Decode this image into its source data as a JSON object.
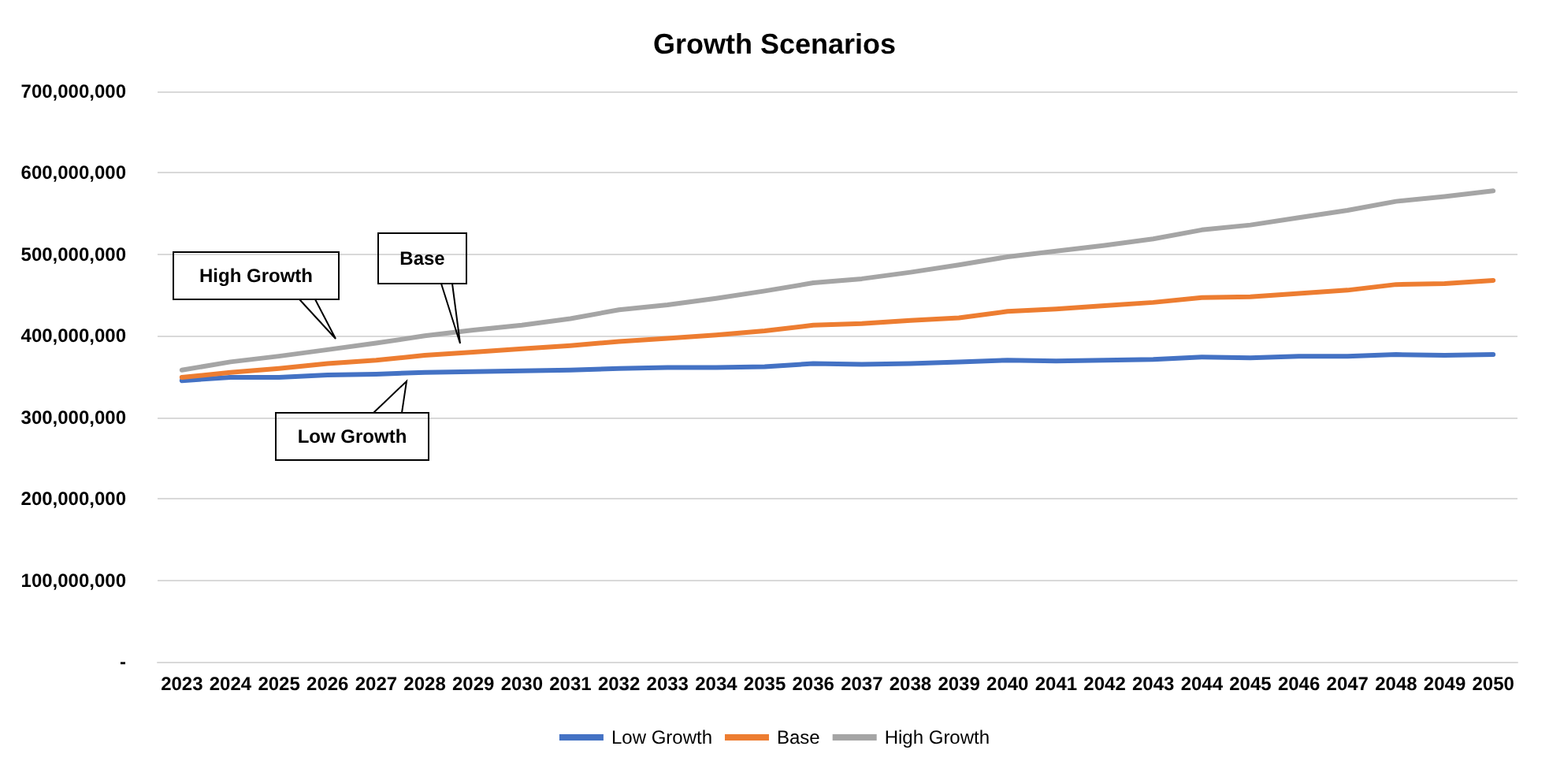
{
  "chart_data": {
    "type": "line",
    "title": "Growth Scenarios",
    "categories": [
      "2023",
      "2024",
      "2025",
      "2026",
      "2027",
      "2028",
      "2029",
      "2030",
      "2031",
      "2032",
      "2033",
      "2034",
      "2035",
      "2036",
      "2037",
      "2038",
      "2039",
      "2040",
      "2041",
      "2042",
      "2043",
      "2044",
      "2045",
      "2046",
      "2047",
      "2048",
      "2049",
      "2050"
    ],
    "series": [
      {
        "name": "Low Growth",
        "color": "#4472c4",
        "values": [
          345000000,
          349000000,
          349000000,
          352000000,
          353000000,
          355000000,
          356000000,
          357000000,
          358000000,
          360000000,
          361000000,
          361000000,
          362000000,
          366000000,
          365000000,
          366000000,
          368000000,
          370000000,
          369000000,
          370000000,
          371000000,
          374000000,
          373000000,
          375000000,
          375000000,
          377000000,
          376000000,
          377000000
        ]
      },
      {
        "name": "Base",
        "color": "#ed7d31",
        "values": [
          349000000,
          355000000,
          360000000,
          366000000,
          370000000,
          376000000,
          380000000,
          384000000,
          388000000,
          393000000,
          397000000,
          401000000,
          406000000,
          413000000,
          415000000,
          419000000,
          422000000,
          430000000,
          433000000,
          437000000,
          441000000,
          447000000,
          448000000,
          452000000,
          456000000,
          463000000,
          464000000,
          468000000
        ]
      },
      {
        "name": "High Growth",
        "color": "#a5a5a5",
        "values": [
          358000000,
          368000000,
          375000000,
          383000000,
          391000000,
          400000000,
          407000000,
          413000000,
          421000000,
          432000000,
          438000000,
          446000000,
          455000000,
          465000000,
          470000000,
          478000000,
          487000000,
          497000000,
          504000000,
          511000000,
          519000000,
          530000000,
          536000000,
          545000000,
          554000000,
          565000000,
          571000000,
          578000000
        ]
      }
    ],
    "ylim": [
      0,
      700000000
    ],
    "yticks": [
      {
        "value": 0,
        "label": "-"
      },
      {
        "value": 100000000,
        "label": "100,000,000"
      },
      {
        "value": 200000000,
        "label": "200,000,000"
      },
      {
        "value": 300000000,
        "label": "300,000,000"
      },
      {
        "value": 400000000,
        "label": "400,000,000"
      },
      {
        "value": 500000000,
        "label": "500,000,000"
      },
      {
        "value": 600000000,
        "label": "600,000,000"
      },
      {
        "value": 700000000,
        "label": "700,000,000"
      }
    ],
    "annotations": [
      "High Growth",
      "Base",
      "Low Growth"
    ],
    "grid": "y",
    "legend": "bottom",
    "marker": "none",
    "line_style": "solid"
  }
}
